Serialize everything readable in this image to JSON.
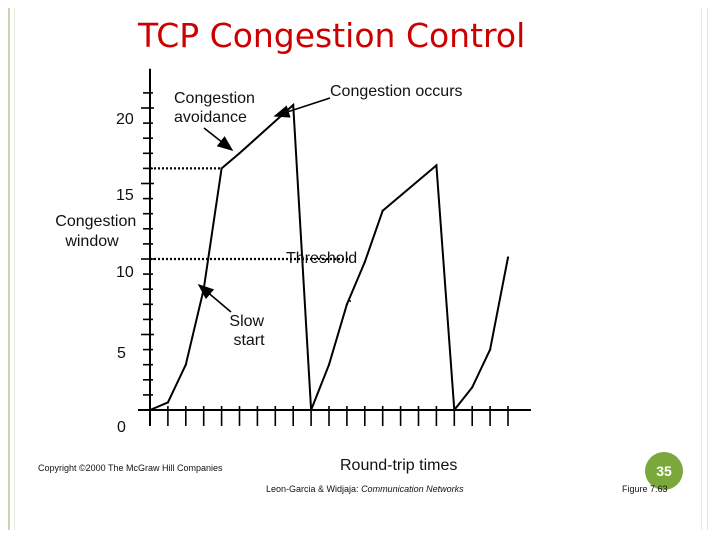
{
  "title": "TCP Congestion Control",
  "chart_data": {
    "type": "line",
    "title": "TCP Congestion Control",
    "xlabel": "Round-trip times",
    "ylabel": "Congestion window",
    "ytick_labels": [
      "0",
      "5",
      "10",
      "15",
      "20"
    ],
    "ylim": [
      0,
      21
    ],
    "xlim": [
      0,
      20.5
    ],
    "series": [
      {
        "x": [
          0,
          1,
          2,
          3,
          4,
          5,
          8,
          9,
          10,
          11,
          12,
          13,
          16,
          17,
          18,
          19,
          20
        ],
        "y": [
          0,
          0.5,
          3,
          8,
          16,
          17,
          20.2,
          0,
          3,
          7,
          9.8,
          13.2,
          16.2,
          0,
          1.5,
          4,
          10.1
        ]
      }
    ],
    "threshold_lines": [
      {
        "y": 16,
        "x_end": 4
      },
      {
        "y": 10,
        "x_end": 11.2
      }
    ],
    "annotations": [
      {
        "text": "Congestion occurs",
        "x": 8,
        "y": 20.2
      },
      {
        "text": "Congestion avoidance",
        "x": 5.5,
        "y": 17.5
      },
      {
        "text": "Threshold",
        "x": 11,
        "y": 10
      },
      {
        "text": "Slow start",
        "x": 3.3,
        "y": 11
      },
      {
        "text": "Congestion window",
        "x": 0,
        "y": 14.5
      }
    ],
    "grid": false,
    "legend": "none"
  },
  "labels": {
    "congestion_occurs": "Congestion occurs",
    "congestion_avoidance": [
      "Congestion",
      "avoidance"
    ],
    "threshold": "Threshold",
    "slow_start": [
      "Slow",
      "start"
    ],
    "ylabel": [
      "Congestion",
      "window"
    ],
    "xlabel": "Round-trip times",
    "period_mark": "."
  },
  "footer": {
    "copyright": "Copyright ©2000 The McGraw Hill Companies",
    "authors": "Leon-Garcia & Widjaja:",
    "book": "Communication Networks",
    "figure": "Figure 7.63",
    "page_number": "35"
  },
  "colors": {
    "title": "#cc0000",
    "line": "#000000",
    "badge": "#7aa83c",
    "frame": "#c8d8b0"
  }
}
